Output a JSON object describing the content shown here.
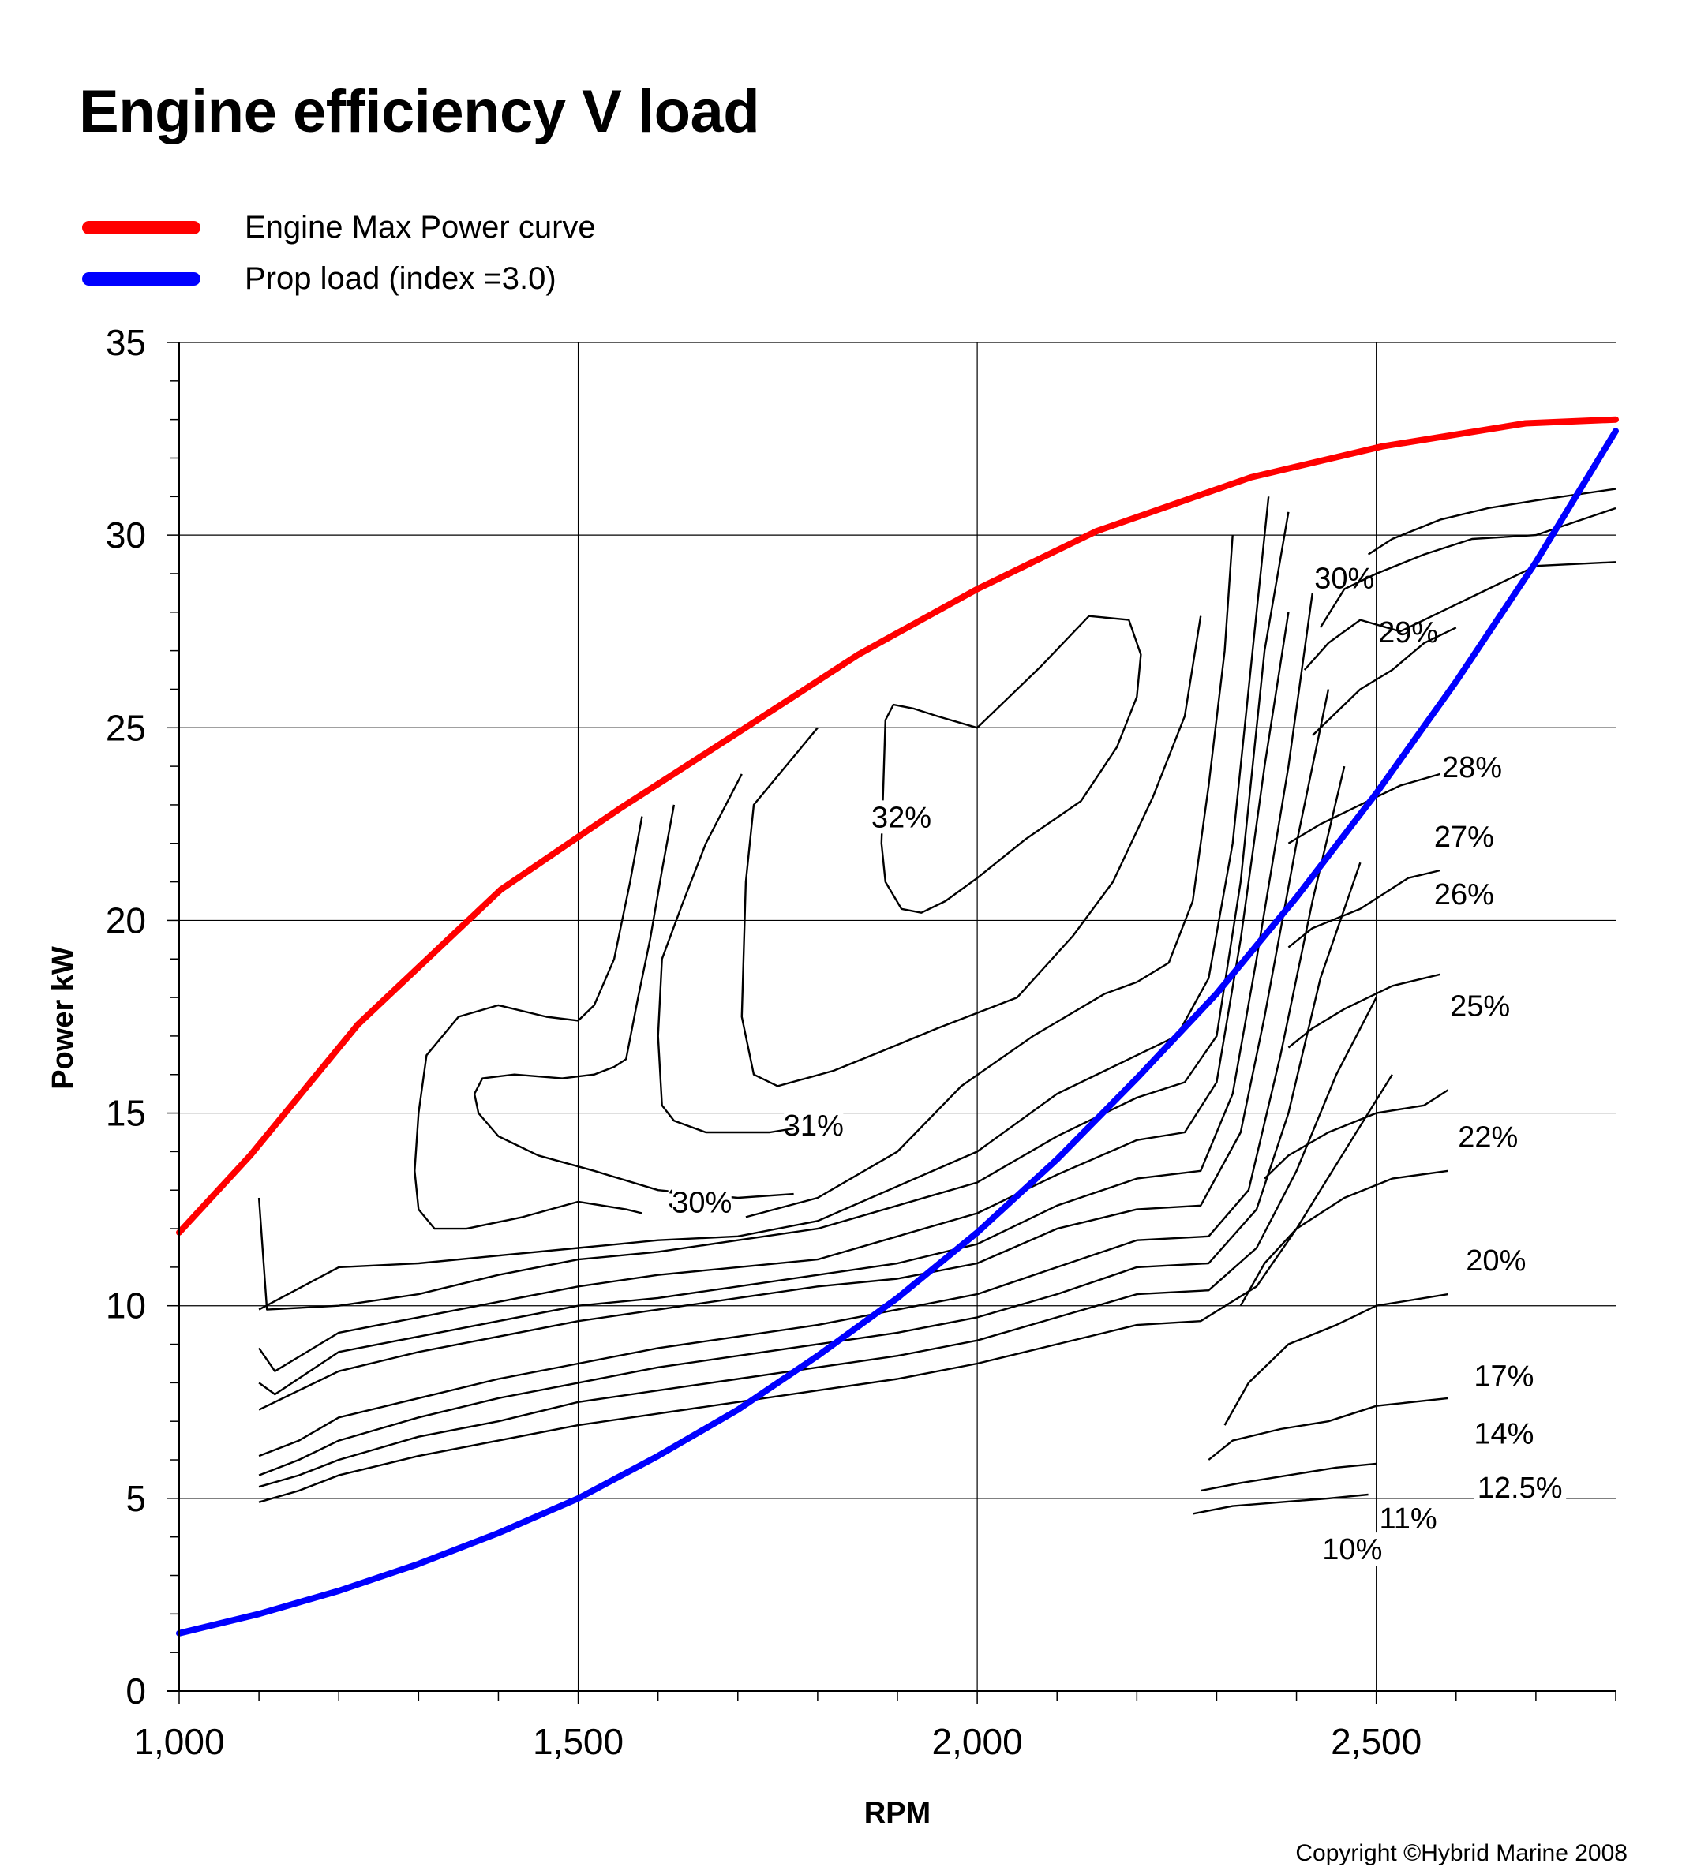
{
  "title": "Engine efficiency V load",
  "copyright": "Copyright ©Hybrid Marine 2008",
  "legend": [
    {
      "label": "Engine Max Power curve",
      "color": "#ff0000"
    },
    {
      "label": "Prop load (index =3.0)",
      "color": "#0000ff"
    }
  ],
  "chart_data": {
    "type": "line",
    "title": "Engine efficiency V load",
    "xlabel": "RPM",
    "ylabel": "Power kW",
    "xlim": [
      1000,
      2800
    ],
    "ylim": [
      0,
      35
    ],
    "x_ticks": [
      1000,
      1500,
      2000,
      2500
    ],
    "x_tick_labels": [
      "1,000",
      "1,500",
      "2,000",
      "2,500"
    ],
    "x_minor_step": 100,
    "y_ticks": [
      0,
      5,
      10,
      15,
      20,
      25,
      30,
      35
    ],
    "y_tick_labels": [
      "0",
      "5",
      "10",
      "15",
      "20",
      "25",
      "30",
      "35"
    ],
    "y_minor_step": 1,
    "grid": true,
    "legend_position": "top-left",
    "series": [
      {
        "name": "Engine Max Power curve",
        "color": "#ff0000",
        "x": [
          1000,
          1089,
          1224,
          1403,
          1552,
          1702,
          1851,
          2000,
          2149,
          2343,
          2507,
          2687,
          2800
        ],
        "y": [
          11.9,
          13.9,
          17.3,
          20.8,
          22.9,
          24.9,
          26.9,
          28.6,
          30.1,
          31.5,
          32.3,
          32.9,
          33.0
        ]
      },
      {
        "name": "Prop load (index =3.0)",
        "color": "#0000ff",
        "x": [
          1000,
          1100,
          1200,
          1300,
          1400,
          1500,
          1600,
          1700,
          1800,
          1900,
          2000,
          2100,
          2200,
          2300,
          2400,
          2500,
          2600,
          2700,
          2800
        ],
        "y": [
          1.5,
          2.0,
          2.6,
          3.3,
          4.1,
          5.0,
          6.1,
          7.3,
          8.7,
          10.2,
          11.9,
          13.8,
          15.9,
          18.1,
          20.6,
          23.3,
          26.2,
          29.3,
          32.7
        ]
      }
    ],
    "contours": [
      {
        "label": "32%",
        "closed": true,
        "label_at": [
          1905,
          22.5
        ],
        "x": [
          1880,
          1885,
          1895,
          1920,
          1950,
          2000,
          2080,
          2140,
          2190,
          2205,
          2200,
          2175,
          2130,
          2060,
          2000,
          1960,
          1930,
          1905,
          1885,
          1880
        ],
        "y": [
          22.0,
          25.2,
          25.6,
          25.5,
          25.3,
          25.0,
          26.6,
          27.9,
          27.8,
          26.9,
          25.8,
          24.5,
          23.1,
          22.1,
          21.1,
          20.5,
          20.2,
          20.3,
          21.0,
          22.0
        ]
      },
      {
        "label": "31%",
        "closed": false,
        "label_at": [
          1795,
          14.5
        ],
        "x": [
          1800,
          1760,
          1720,
          1710,
          1705,
          1720,
          1750,
          1820,
          1880,
          1950,
          2050,
          2120,
          2170,
          2220,
          2260,
          2280
        ],
        "y": [
          25.0,
          24.0,
          23.0,
          21.0,
          17.5,
          16.0,
          15.7,
          16.1,
          16.6,
          17.2,
          18.0,
          19.6,
          21.0,
          23.2,
          25.3,
          27.9
        ]
      },
      {
        "label": "31%",
        "closed": false,
        "x": [
          1705,
          1660,
          1630,
          1605,
          1600,
          1605,
          1620,
          1660,
          1740,
          1770
        ],
        "y": [
          23.8,
          22.0,
          20.4,
          19.0,
          17.0,
          15.2,
          14.8,
          14.5,
          14.5,
          14.6
        ]
      },
      {
        "label": "30%",
        "closed": false,
        "label_at": [
          1650,
          12.6
        ],
        "x": [
          1620,
          1605,
          1590,
          1575,
          1560,
          1545,
          1520,
          1480,
          1420,
          1380,
          1370,
          1375,
          1400,
          1450,
          1520,
          1600,
          1700,
          1770
        ],
        "y": [
          23.0,
          21.3,
          19.5,
          18.0,
          16.4,
          16.2,
          16.0,
          15.9,
          16.0,
          15.9,
          15.5,
          15.0,
          14.4,
          13.9,
          13.5,
          13.0,
          12.8,
          12.9
        ]
      },
      {
        "label": "30%",
        "closed": false,
        "label_at": [
          1655,
          12.5
        ],
        "x": [
          1580,
          1565,
          1545,
          1520,
          1500,
          1460,
          1400,
          1350,
          1310,
          1300,
          1295,
          1300,
          1320,
          1360,
          1430,
          1500,
          1560,
          1580
        ],
        "y": [
          22.7,
          21.0,
          19.0,
          17.8,
          17.4,
          17.5,
          17.8,
          17.5,
          16.5,
          15.0,
          13.5,
          12.5,
          12.0,
          12.0,
          12.3,
          12.7,
          12.5,
          12.4
        ]
      },
      {
        "label": "",
        "closed": false,
        "x": [
          1710,
          1800,
          1900,
          1980,
          2070,
          2160,
          2200,
          2240,
          2270,
          2290,
          2310,
          2320
        ],
        "y": [
          12.3,
          12.8,
          14.0,
          15.7,
          17.0,
          18.1,
          18.4,
          18.9,
          20.5,
          23.5,
          27.0,
          30.0
        ]
      },
      {
        "label": "",
        "closed": false,
        "x": [
          1100,
          1200,
          1300,
          1400,
          1500,
          1600,
          1700,
          1800,
          1900,
          2000,
          2100,
          2200,
          2250,
          2290,
          2320,
          2350,
          2365
        ],
        "y": [
          9.9,
          11.0,
          11.1,
          11.3,
          11.5,
          11.7,
          11.8,
          12.2,
          13.1,
          14.0,
          15.5,
          16.5,
          17.0,
          18.5,
          22.0,
          28.0,
          31.0
        ]
      },
      {
        "label": "",
        "closed": false,
        "x": [
          1100,
          1110,
          1200,
          1300,
          1400,
          1500,
          1600,
          1700,
          1800,
          1900,
          2000,
          2100,
          2200,
          2260,
          2300,
          2330,
          2360,
          2390
        ],
        "y": [
          12.8,
          9.9,
          10.0,
          10.3,
          10.8,
          11.2,
          11.4,
          11.7,
          12.0,
          12.6,
          13.2,
          14.4,
          15.4,
          15.8,
          17.0,
          21.0,
          27.0,
          30.6
        ]
      },
      {
        "label": "",
        "closed": false,
        "x": [
          1100,
          1120,
          1200,
          1300,
          1400,
          1500,
          1600,
          1700,
          1800,
          1900,
          2000,
          2100,
          2200,
          2260,
          2300,
          2330,
          2360,
          2390
        ],
        "y": [
          8.9,
          8.3,
          9.3,
          9.7,
          10.1,
          10.5,
          10.8,
          11.0,
          11.2,
          11.8,
          12.4,
          13.4,
          14.3,
          14.5,
          15.8,
          19.5,
          24.0,
          28.0
        ]
      },
      {
        "label": "",
        "closed": false,
        "x": [
          1100,
          1120,
          1200,
          1300,
          1400,
          1500,
          1600,
          1700,
          1800,
          1900,
          2000,
          2100,
          2200,
          2280,
          2320,
          2350,
          2390,
          2420
        ],
        "y": [
          8.0,
          7.7,
          8.8,
          9.2,
          9.6,
          10.0,
          10.2,
          10.5,
          10.8,
          11.1,
          11.6,
          12.6,
          13.3,
          13.5,
          15.5,
          19.0,
          24.0,
          28.5
        ]
      },
      {
        "label": "",
        "closed": false,
        "x": [
          1100,
          1150,
          1200,
          1300,
          1400,
          1500,
          1600,
          1700,
          1800,
          1900,
          2000,
          2100,
          2200,
          2280,
          2330,
          2360,
          2400,
          2440
        ],
        "y": [
          7.3,
          7.8,
          8.3,
          8.8,
          9.2,
          9.6,
          9.9,
          10.2,
          10.5,
          10.7,
          11.1,
          12.0,
          12.5,
          12.6,
          14.5,
          17.5,
          22.0,
          26.0
        ]
      },
      {
        "label": "",
        "closed": false,
        "x": [
          1100,
          1150,
          1200,
          1300,
          1400,
          1500,
          1600,
          1700,
          1800,
          1900,
          2000,
          2100,
          2200,
          2290,
          2340,
          2380,
          2420,
          2460
        ],
        "y": [
          6.1,
          6.5,
          7.1,
          7.6,
          8.1,
          8.5,
          8.9,
          9.2,
          9.5,
          9.9,
          10.3,
          11.0,
          11.7,
          11.8,
          13.0,
          16.5,
          20.5,
          24.0
        ]
      },
      {
        "label": "",
        "closed": false,
        "x": [
          1100,
          1150,
          1200,
          1300,
          1400,
          1500,
          1600,
          1700,
          1800,
          1900,
          2000,
          2100,
          2200,
          2290,
          2350,
          2390,
          2430,
          2480
        ],
        "y": [
          5.6,
          6.0,
          6.5,
          7.1,
          7.6,
          8.0,
          8.4,
          8.7,
          9.0,
          9.3,
          9.7,
          10.3,
          11.0,
          11.1,
          12.5,
          15.0,
          18.5,
          21.5
        ]
      },
      {
        "label": "",
        "closed": false,
        "x": [
          1100,
          1150,
          1200,
          1300,
          1400,
          1500,
          1600,
          1700,
          1800,
          1900,
          2000,
          2100,
          2200,
          2290,
          2350,
          2400,
          2450,
          2500
        ],
        "y": [
          5.3,
          5.6,
          6.0,
          6.6,
          7.0,
          7.5,
          7.8,
          8.1,
          8.4,
          8.7,
          9.1,
          9.7,
          10.3,
          10.4,
          11.5,
          13.5,
          16.0,
          18.0
        ]
      },
      {
        "label": "",
        "closed": false,
        "x": [
          1100,
          1150,
          1200,
          1300,
          1400,
          1500,
          1600,
          1700,
          1800,
          1900,
          2000,
          2100,
          2200,
          2280,
          2350,
          2400,
          2460,
          2520
        ],
        "y": [
          4.9,
          5.2,
          5.6,
          6.1,
          6.5,
          6.9,
          7.2,
          7.5,
          7.8,
          8.1,
          8.5,
          9.0,
          9.5,
          9.6,
          10.5,
          12.0,
          14.0,
          16.0
        ]
      },
      {
        "label": "30%",
        "closed": false,
        "label_at": [
          2460,
          28.7
        ],
        "x": [
          2490,
          2520,
          2580,
          2640,
          2700,
          2800
        ],
        "y": [
          29.5,
          29.9,
          30.4,
          30.7,
          30.9,
          31.2
        ]
      },
      {
        "label": "29%",
        "closed": false,
        "label_at": [
          2540,
          27.3
        ],
        "x": [
          2430,
          2460,
          2500,
          2560,
          2620,
          2700,
          2800
        ],
        "y": [
          27.6,
          28.6,
          29.0,
          29.5,
          29.9,
          30.0,
          30.7
        ]
      },
      {
        "label": "28%",
        "closed": false,
        "label_at": [
          2620,
          23.8
        ],
        "x": [
          2410,
          2440,
          2480,
          2530,
          2580,
          2640,
          2700,
          2800
        ],
        "y": [
          26.5,
          27.2,
          27.8,
          27.5,
          28.0,
          28.6,
          29.2,
          29.3
        ]
      },
      {
        "label": "27%",
        "closed": false,
        "label_at": [
          2610,
          22.0
        ],
        "x": [
          2420,
          2440,
          2480,
          2520,
          2560,
          2600
        ],
        "y": [
          24.8,
          25.2,
          26.0,
          26.5,
          27.2,
          27.6
        ]
      },
      {
        "label": "26%",
        "closed": false,
        "label_at": [
          2610,
          20.5
        ],
        "x": [
          2390,
          2430,
          2480,
          2530,
          2580
        ],
        "y": [
          22.0,
          22.5,
          23.0,
          23.5,
          23.8
        ]
      },
      {
        "label": "25%",
        "closed": false,
        "label_at": [
          2630,
          17.6
        ],
        "x": [
          2390,
          2420,
          2480,
          2540,
          2580
        ],
        "y": [
          19.3,
          19.8,
          20.3,
          21.1,
          21.3
        ]
      },
      {
        "label": "22%",
        "closed": false,
        "label_at": [
          2640,
          14.2
        ],
        "x": [
          2390,
          2420,
          2460,
          2520,
          2580
        ],
        "y": [
          16.7,
          17.2,
          17.7,
          18.3,
          18.6
        ]
      },
      {
        "label": "20%",
        "closed": false,
        "label_at": [
          2650,
          11.0
        ],
        "x": [
          2360,
          2390,
          2440,
          2500,
          2560,
          2590
        ],
        "y": [
          13.3,
          13.9,
          14.5,
          15.0,
          15.2,
          15.6
        ]
      },
      {
        "label": "17%",
        "closed": false,
        "label_at": [
          2660,
          8.0
        ],
        "x": [
          2330,
          2360,
          2400,
          2460,
          2520,
          2590
        ],
        "y": [
          10.0,
          11.1,
          12.0,
          12.8,
          13.3,
          13.5
        ]
      },
      {
        "label": "14%",
        "closed": false,
        "label_at": [
          2660,
          6.5
        ],
        "x": [
          2310,
          2340,
          2390,
          2450,
          2500,
          2590
        ],
        "y": [
          6.9,
          8.0,
          9.0,
          9.5,
          10.0,
          10.3
        ]
      },
      {
        "label": "12.5%",
        "closed": false,
        "label_at": [
          2680,
          5.1
        ],
        "x": [
          2290,
          2320,
          2380,
          2440,
          2500,
          2590
        ],
        "y": [
          6.0,
          6.5,
          6.8,
          7.0,
          7.4,
          7.6
        ]
      },
      {
        "label": "11%",
        "closed": false,
        "label_at": [
          2540,
          4.3
        ],
        "x": [
          2280,
          2330,
          2390,
          2450,
          2500
        ],
        "y": [
          5.2,
          5.4,
          5.6,
          5.8,
          5.9
        ]
      },
      {
        "label": "10%",
        "closed": false,
        "label_at": [
          2470,
          3.5
        ],
        "x": [
          2270,
          2320,
          2380,
          2440,
          2490
        ],
        "y": [
          4.6,
          4.8,
          4.9,
          5.0,
          5.1
        ]
      }
    ],
    "contour_label_list": [
      "32%",
      "31%",
      "30%",
      "30%",
      "29%",
      "28%",
      "27%",
      "26%",
      "25%",
      "22%",
      "20%",
      "17%",
      "14%",
      "12.5%",
      "11%",
      "10%"
    ]
  }
}
